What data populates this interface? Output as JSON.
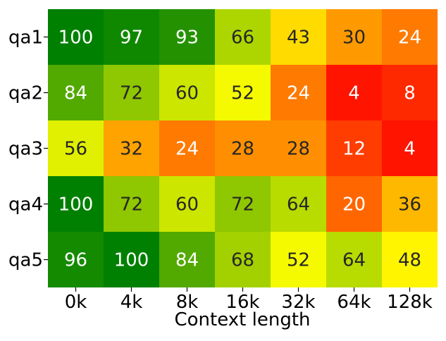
{
  "chart_data": {
    "type": "heatmap",
    "title": "",
    "xlabel": "Context length",
    "ylabel": "",
    "x": [
      "0k",
      "4k",
      "8k",
      "16k",
      "32k",
      "64k",
      "128k"
    ],
    "y": [
      "qa1",
      "qa2",
      "qa3",
      "qa4",
      "qa5"
    ],
    "values": [
      [
        100,
        97,
        93,
        66,
        43,
        30,
        24
      ],
      [
        84,
        72,
        60,
        52,
        24,
        4,
        8
      ],
      [
        56,
        32,
        24,
        28,
        28,
        12,
        4
      ],
      [
        100,
        72,
        60,
        72,
        64,
        20,
        36
      ],
      [
        96,
        100,
        84,
        68,
        52,
        64,
        48
      ]
    ],
    "value_range": [
      0,
      100
    ],
    "colormap": [
      "#ff0000",
      "#ffff00",
      "#008000"
    ],
    "cell_text_colors": {
      "dark_cells": "#ffffff",
      "light_cells": "#262626"
    },
    "grid": false,
    "legend": "none"
  }
}
